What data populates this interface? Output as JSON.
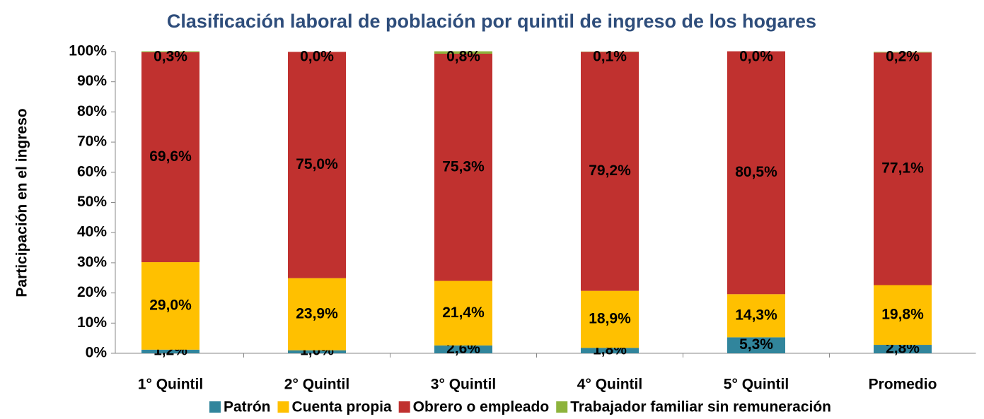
{
  "chart_data": {
    "type": "stacked-bar",
    "title": "Clasificación laboral de población por quintil de ingreso de los hogares",
    "y_label": "Participación en el ingreso",
    "categories": [
      "1° Quintil",
      "2° Quintil",
      "3° Quintil",
      "4° Quintil",
      "5° Quintil",
      "Promedio"
    ],
    "series": [
      {
        "name": "Patrón",
        "color": "#31859c",
        "values": [
          1.2,
          1.0,
          2.6,
          1.8,
          5.3,
          2.8
        ],
        "value_labels": [
          "1,2%",
          "1,0%",
          "2,6%",
          "1,8%",
          "5,3%",
          "2,8%"
        ]
      },
      {
        "name": "Cuenta propia",
        "color": "#ffc000",
        "values": [
          29.0,
          23.9,
          21.4,
          18.9,
          14.3,
          19.8
        ],
        "value_labels": [
          "29,0%",
          "23,9%",
          "21,4%",
          "18,9%",
          "14,3%",
          "19,8%"
        ]
      },
      {
        "name": "Obrero o empleado",
        "color": "#c0312f",
        "values": [
          69.6,
          75.0,
          75.3,
          79.2,
          80.5,
          77.1
        ],
        "value_labels": [
          "69,6%",
          "75,0%",
          "75,3%",
          "79,2%",
          "80,5%",
          "77,1%"
        ]
      },
      {
        "name": "Trabajador familiar sin remuneración",
        "color": "#8db33c",
        "values": [
          0.3,
          0.0,
          0.8,
          0.1,
          0.0,
          0.2
        ],
        "value_labels": [
          "0,3%",
          "0,0%",
          "0,8%",
          "0,1%",
          "0,0%",
          "0,2%"
        ]
      }
    ],
    "ylim": [
      0,
      100
    ],
    "yticks": [
      {
        "value": 0,
        "label": "0%"
      },
      {
        "value": 10,
        "label": "10%"
      },
      {
        "value": 20,
        "label": "20%"
      },
      {
        "value": 30,
        "label": "30%"
      },
      {
        "value": 40,
        "label": "40%"
      },
      {
        "value": 50,
        "label": "50%"
      },
      {
        "value": 60,
        "label": "60%"
      },
      {
        "value": 70,
        "label": "70%"
      },
      {
        "value": 80,
        "label": "80%"
      },
      {
        "value": 90,
        "label": "90%"
      },
      {
        "value": 100,
        "label": "100%"
      }
    ],
    "legend": "bottom"
  }
}
